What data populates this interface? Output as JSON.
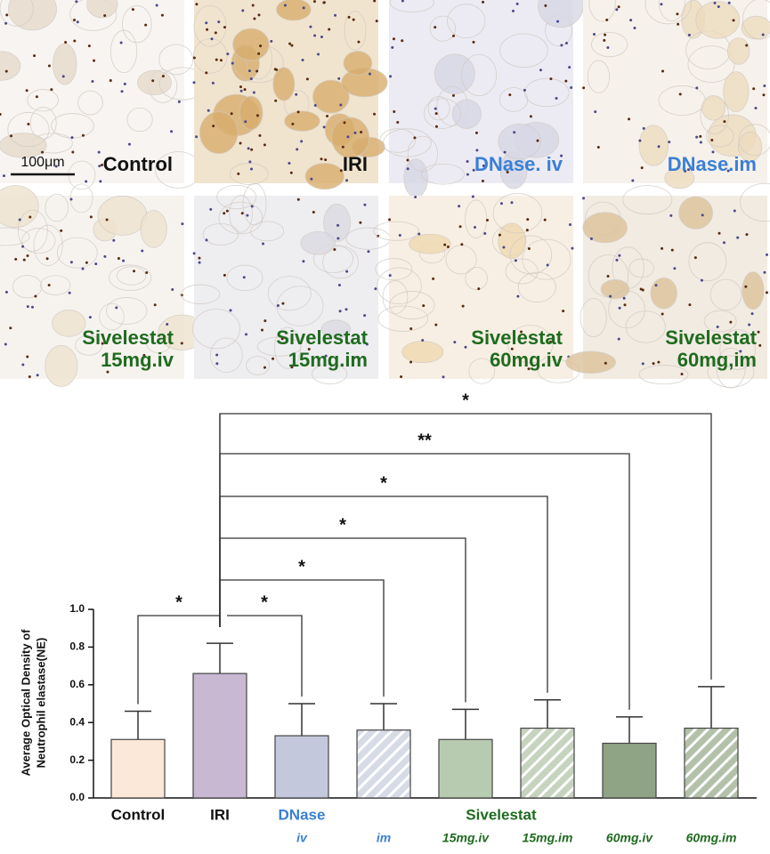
{
  "chart_data": {
    "type": "bar",
    "panels": [
      {
        "lines": [
          "Control"
        ],
        "color": "#111111"
      },
      {
        "lines": [
          "IRI"
        ],
        "color": "#111111"
      },
      {
        "lines": [
          "DNase. iv"
        ],
        "color": "#3a7fd5"
      },
      {
        "lines": [
          "DNase.im"
        ],
        "color": "#3a7fd5"
      },
      {
        "lines": [
          "Sivelestat",
          "15mg.iv"
        ],
        "color": "#1f6b1f"
      },
      {
        "lines": [
          "Sivelestat",
          "15mg.im"
        ],
        "color": "#1f6b1f"
      },
      {
        "lines": [
          "Sivelestat",
          "60mg.iv"
        ],
        "color": "#1f6b1f"
      },
      {
        "lines": [
          "Sivelestat",
          "60mg,im"
        ],
        "color": "#1f6b1f"
      }
    ],
    "scale_bar": "100μm",
    "y_label": [
      "Average Optical Density of",
      "Neutrophil elastase(NE)"
    ],
    "categories": [
      "Control",
      "IRI",
      "iv",
      "im",
      "15mg.iv",
      "15mg.im",
      "60mg.iv",
      "60mg.im"
    ],
    "label_colors": [
      "#111111",
      "#111111",
      "#3a7fd5",
      "#3a7fd5",
      "#1f6b1f",
      "#1f6b1f",
      "#1f6b1f",
      "#1f6b1f"
    ],
    "groups": [
      {
        "name": "DNase",
        "color": "#3a7fd5"
      },
      {
        "name": "Sivelestat",
        "color": "#1f6b1f"
      }
    ],
    "values": [
      0.31,
      0.66,
      0.33,
      0.36,
      0.31,
      0.37,
      0.29,
      0.37
    ],
    "errors": [
      0.15,
      0.16,
      0.17,
      0.14,
      0.16,
      0.15,
      0.14,
      0.22
    ],
    "colors": [
      "#fbe8d8",
      "#c9b8d2",
      "#c3c8dc",
      "#d6dbe6",
      "#b7cbb0",
      "#c6d3bf",
      "#8fa385",
      "#b3c1aa"
    ],
    "hatch": [
      false,
      false,
      false,
      true,
      false,
      true,
      false,
      true
    ],
    "ylim": [
      0,
      1
    ],
    "yticks": [
      {
        "value": 0,
        "label": "0.0"
      },
      0.2,
      0.4,
      0.6,
      0.8,
      {
        "value": 1,
        "label": "1.0"
      }
    ],
    "comparisons": [
      {
        "from": 1,
        "to": 0,
        "label": "*"
      },
      {
        "from": 1,
        "to": 2,
        "label": "*"
      },
      {
        "from": 1,
        "to": 3,
        "label": "*"
      },
      {
        "from": 1,
        "to": 4,
        "label": "*"
      },
      {
        "from": 1,
        "to": 5,
        "label": "*"
      },
      {
        "from": 1,
        "to": 6,
        "label": "**"
      },
      {
        "from": 1,
        "to": 7,
        "label": "*"
      }
    ]
  }
}
